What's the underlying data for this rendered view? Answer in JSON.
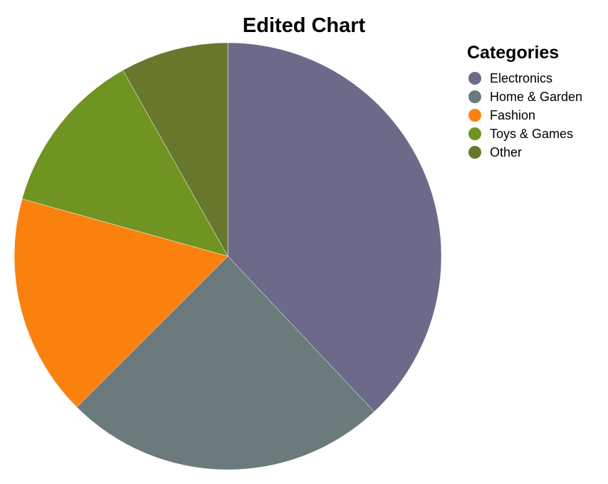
{
  "chart_data": {
    "type": "pie",
    "title": "Edited Chart",
    "legend_title": "Categories",
    "legend_position": "top-right",
    "start_angle": "12 o'clock",
    "direction": "clockwise",
    "slices": [
      {
        "label": "Electronics",
        "value": 39.5,
        "color": "#6b6b89"
      },
      {
        "label": "Home & Garden",
        "value": 25.5,
        "color": "#6b7b7b"
      },
      {
        "label": "Fashion",
        "value": 17.5,
        "color": "#fb810f"
      },
      {
        "label": "Toys & Games",
        "value": 13.0,
        "color": "#709421"
      },
      {
        "label": "Other",
        "value": 8.5,
        "color": "#67782d"
      }
    ]
  }
}
